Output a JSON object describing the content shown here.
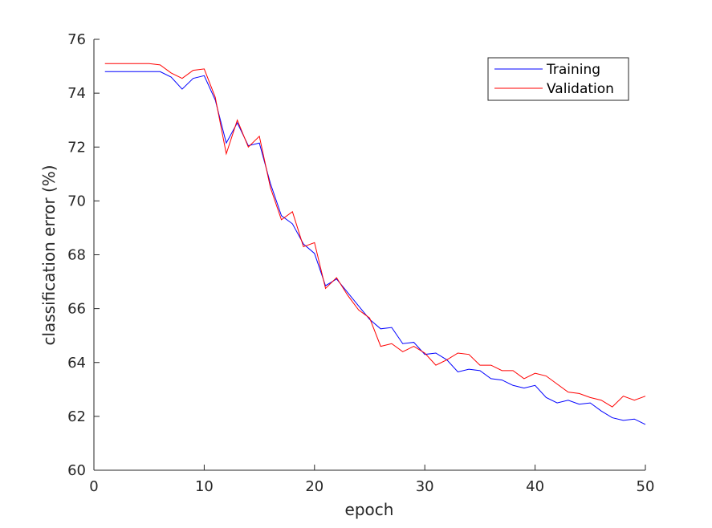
{
  "chart_data": {
    "type": "line",
    "title": "",
    "xlabel": "epoch",
    "ylabel": "classification error (%)",
    "xlim": [
      0,
      50
    ],
    "ylim": [
      60,
      76
    ],
    "xticks": [
      0,
      10,
      20,
      30,
      40,
      50
    ],
    "yticks": [
      60,
      62,
      64,
      66,
      68,
      70,
      72,
      74,
      76
    ],
    "grid": false,
    "legend_position": "top-right",
    "x": [
      1,
      2,
      3,
      4,
      5,
      6,
      7,
      8,
      9,
      10,
      11,
      12,
      13,
      14,
      15,
      16,
      17,
      18,
      19,
      20,
      21,
      22,
      23,
      24,
      25,
      26,
      27,
      28,
      29,
      30,
      31,
      32,
      33,
      34,
      35,
      36,
      37,
      38,
      39,
      40,
      41,
      42,
      43,
      44,
      45,
      46,
      47,
      48,
      49,
      50
    ],
    "series": [
      {
        "name": "Training",
        "color": "#0000ff",
        "values": [
          74.8,
          74.8,
          74.8,
          74.8,
          74.8,
          74.8,
          74.6,
          74.15,
          74.55,
          74.65,
          73.75,
          72.15,
          72.9,
          72.05,
          72.15,
          70.65,
          69.45,
          69.15,
          68.4,
          68.05,
          66.85,
          67.1,
          66.6,
          66.1,
          65.6,
          65.25,
          65.3,
          64.7,
          64.75,
          64.3,
          64.35,
          64.1,
          63.65,
          63.75,
          63.7,
          63.4,
          63.35,
          63.15,
          63.05,
          63.15,
          62.7,
          62.5,
          62.6,
          62.45,
          62.5,
          62.2,
          61.95,
          61.85,
          61.9,
          61.7
        ]
      },
      {
        "name": "Validation",
        "color": "#ff0000",
        "values": [
          75.1,
          75.1,
          75.1,
          75.1,
          75.1,
          75.05,
          74.75,
          74.55,
          74.85,
          74.9,
          73.85,
          71.75,
          73.0,
          72.0,
          72.4,
          70.5,
          69.3,
          69.6,
          68.3,
          68.45,
          66.75,
          67.15,
          66.5,
          65.95,
          65.65,
          64.6,
          64.7,
          64.4,
          64.6,
          64.35,
          63.9,
          64.1,
          64.35,
          64.3,
          63.9,
          63.9,
          63.7,
          63.7,
          63.4,
          63.6,
          63.5,
          63.2,
          62.9,
          62.85,
          62.7,
          62.6,
          62.35,
          62.75,
          62.6,
          62.75
        ]
      }
    ]
  }
}
